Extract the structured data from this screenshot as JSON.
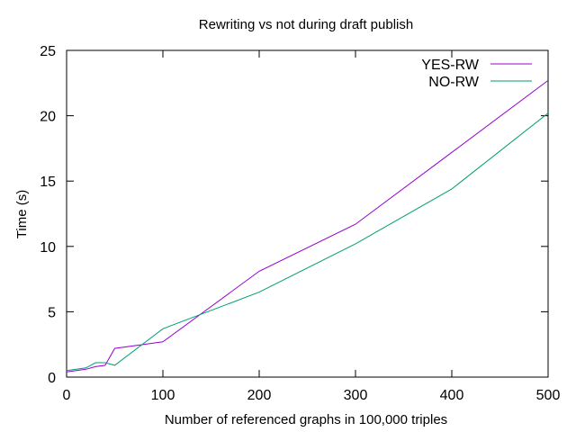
{
  "chart_data": {
    "type": "line",
    "title": "Rewriting vs not during draft publish",
    "xlabel": "Number of referenced graphs in 100,000 triples",
    "ylabel": "Time (s)",
    "xlim": [
      0,
      500
    ],
    "ylim": [
      0,
      25
    ],
    "xticks": [
      0,
      100,
      200,
      300,
      400,
      500
    ],
    "yticks": [
      0,
      5,
      10,
      15,
      20,
      25
    ],
    "grid": false,
    "legend_position": "top-right",
    "series": [
      {
        "name": "YES-RW",
        "color": "#9400d3",
        "x": [
          0,
          10,
          20,
          30,
          40,
          50,
          100,
          200,
          300,
          400,
          500
        ],
        "y": [
          0.4,
          0.5,
          0.6,
          0.8,
          0.9,
          2.2,
          2.7,
          8.1,
          11.7,
          17.2,
          22.7
        ]
      },
      {
        "name": "NO-RW",
        "color": "#009e73",
        "x": [
          0,
          10,
          20,
          30,
          40,
          50,
          100,
          200,
          300,
          400,
          500
        ],
        "y": [
          0.5,
          0.6,
          0.7,
          1.1,
          1.1,
          0.9,
          3.7,
          6.5,
          10.2,
          14.4,
          20.2
        ]
      }
    ]
  }
}
